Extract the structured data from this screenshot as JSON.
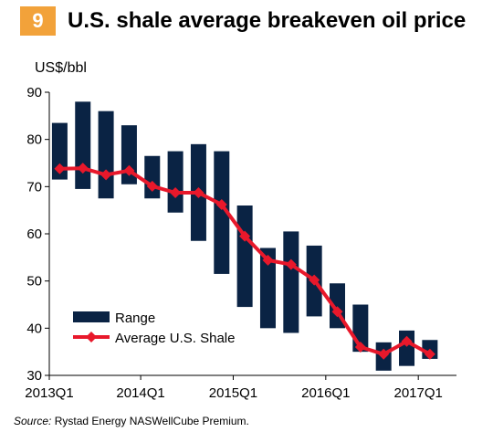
{
  "header": {
    "badge": "9",
    "title": "U.S. shale average breakeven oil price"
  },
  "source": {
    "prefix": "Source:",
    "text": "Rystad Energy NASWellCube Premium."
  },
  "colors": {
    "range": "#0a2344",
    "average": "#e8182b",
    "badge": "#f2a23a"
  },
  "chart_data": {
    "type": "bar",
    "ylabel": "US$/bbl",
    "ylim": [
      30,
      90
    ],
    "yticks": [
      30,
      40,
      50,
      60,
      70,
      80,
      90
    ],
    "x_tick_labels": [
      "2013Q1",
      "2014Q1",
      "2015Q1",
      "2016Q1",
      "2017Q1"
    ],
    "categories": [
      "2013Q1",
      "2013Q2",
      "2013Q3",
      "2013Q4",
      "2014Q1",
      "2014Q2",
      "2014Q3",
      "2014Q4",
      "2015Q1",
      "2015Q2",
      "2015Q3",
      "2015Q4",
      "2016Q1",
      "2016Q2",
      "2016Q3",
      "2016Q4",
      "2017Q1"
    ],
    "series": [
      {
        "name": "Range",
        "type": "range",
        "low": [
          71.5,
          69.5,
          67.5,
          70.5,
          67.5,
          64.5,
          58.5,
          51.5,
          44.5,
          40.0,
          39.0,
          42.5,
          40.0,
          35.0,
          31.0,
          32.0,
          33.5
        ],
        "high": [
          83.5,
          88.0,
          86.0,
          83.0,
          76.5,
          77.5,
          79.0,
          77.5,
          66.0,
          57.0,
          60.5,
          57.5,
          49.5,
          45.0,
          37.0,
          39.5,
          37.5
        ]
      },
      {
        "name": "Average U.S. Shale",
        "type": "line",
        "values": [
          73.8,
          73.9,
          72.5,
          73.4,
          70.1,
          68.7,
          68.7,
          66.2,
          59.5,
          54.4,
          53.5,
          50.2,
          43.5,
          36.0,
          34.5,
          37.2,
          34.5
        ]
      }
    ],
    "legend": "bottom-left",
    "grid": false
  }
}
